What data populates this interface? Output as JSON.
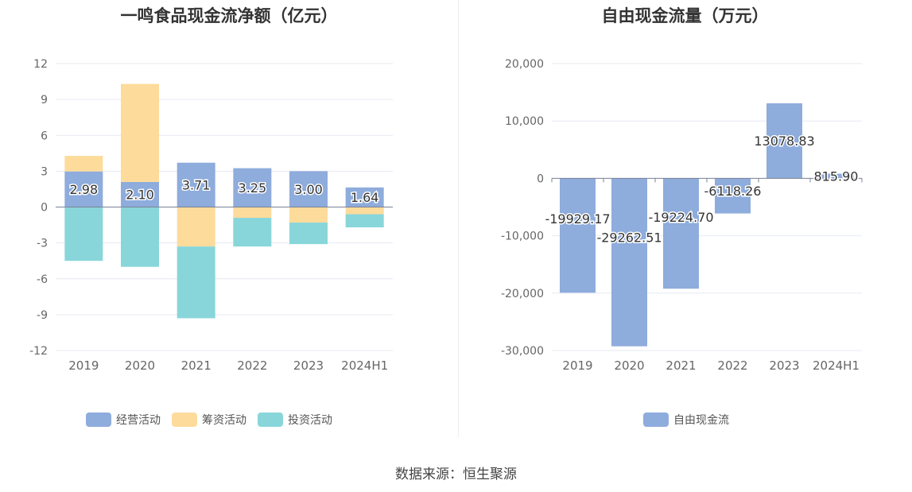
{
  "source": "数据来源：恒生聚源",
  "chart_data": [
    {
      "type": "bar",
      "stacked": true,
      "title": "一鸣食品现金流净额（亿元）",
      "categories": [
        "2019",
        "2020",
        "2021",
        "2022",
        "2023",
        "2024H1"
      ],
      "ylim": [
        -12,
        12
      ],
      "yticks": [
        "12",
        "9",
        "6",
        "3",
        "0",
        "-3",
        "-6",
        "-9",
        "-12"
      ],
      "ytick_values": [
        12,
        9,
        6,
        3,
        0,
        -3,
        -6,
        -9,
        -12
      ],
      "grid": true,
      "legend_position": "bottom",
      "series": [
        {
          "name": "经营活动",
          "color": "#8eacdc",
          "values": [
            2.98,
            2.1,
            3.71,
            3.25,
            3.0,
            1.64
          ],
          "labels": [
            "2.98",
            "2.10",
            "3.71",
            "3.25",
            "3.00",
            "1.64"
          ]
        },
        {
          "name": "筹资活动",
          "color": "#fddb9b",
          "values": [
            1.3,
            8.2,
            -3.3,
            -0.9,
            -1.3,
            -0.6
          ]
        },
        {
          "name": "投资活动",
          "color": "#88d6da",
          "values": [
            -4.5,
            -5.0,
            -6.0,
            -2.4,
            -1.8,
            -1.1
          ]
        }
      ]
    },
    {
      "type": "bar",
      "title": "自由现金流量（万元）",
      "categories": [
        "2019",
        "2020",
        "2021",
        "2022",
        "2023",
        "2024H1"
      ],
      "ylim": [
        -30000,
        20000
      ],
      "yticks": [
        "20,000",
        "10,000",
        "0",
        "-10,000",
        "-20,000",
        "-30,000"
      ],
      "ytick_values": [
        20000,
        10000,
        0,
        -10000,
        -20000,
        -30000
      ],
      "grid": true,
      "legend_position": "bottom",
      "series": [
        {
          "name": "自由现金流",
          "color": "#8eacdc",
          "values": [
            -19929.17,
            -29262.51,
            -19224.7,
            -6118.26,
            13078.83,
            815.9
          ],
          "labels": [
            "-19929.17",
            "-29262.51",
            "-19224.70",
            "-6118.26",
            "13078.83",
            "815.90"
          ]
        }
      ]
    }
  ]
}
